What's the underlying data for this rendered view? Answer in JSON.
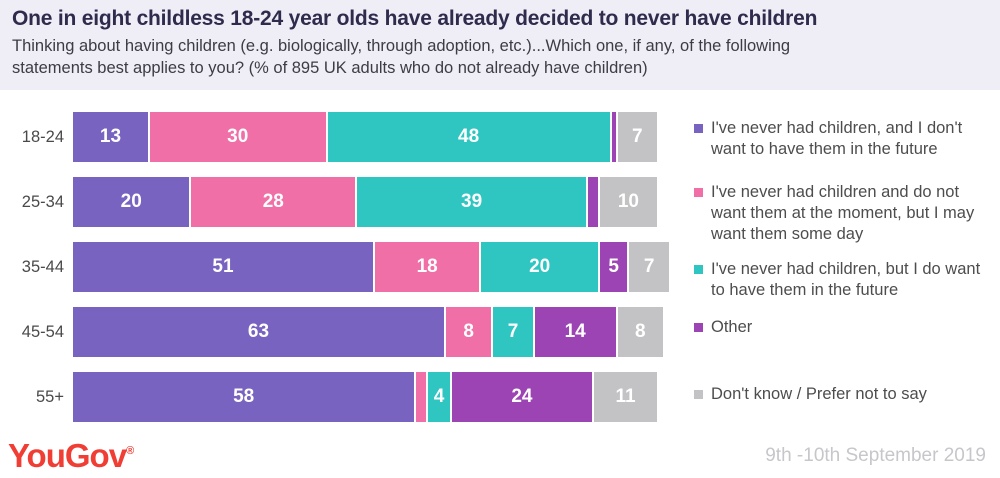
{
  "header": {
    "title": "One in eight childless 18-24 year olds have already decided to never have children",
    "subtitle_lines": [
      "Thinking about having children (e.g. biologically, through adoption, etc.)...Which one, if any, of the following",
      "statements best applies to you? (% of 895 UK adults who do not already have children)"
    ]
  },
  "chart_data": {
    "type": "bar",
    "variant": "horizontal-stacked",
    "unit": "%",
    "xlim": [
      0,
      100
    ],
    "grid": false,
    "legend_position": "right",
    "value_label_min": 4,
    "categories": [
      "18-24",
      "25-34",
      "35-44",
      "45-54",
      "55+"
    ],
    "series": [
      {
        "name": "I've never had children, and I don't want to have them in the future",
        "color": "#7963C1",
        "values": [
          13,
          20,
          51,
          63,
          58
        ]
      },
      {
        "name": "I've never had children and do not want them at the moment, but I may want them some day",
        "color": "#F06FA6",
        "values": [
          30,
          28,
          18,
          8,
          2
        ]
      },
      {
        "name": "I've never had children, but I do want to have them in the future",
        "color": "#2FC6C2",
        "values": [
          48,
          39,
          20,
          7,
          4
        ]
      },
      {
        "name": "Other",
        "color": "#9C44B3",
        "values": [
          1,
          2,
          5,
          14,
          24
        ]
      },
      {
        "name": "Don't know / Prefer not to say",
        "color": "#C3C2C4",
        "values": [
          7,
          10,
          7,
          8,
          11
        ]
      }
    ]
  },
  "footer": {
    "logo_text": "YouGov",
    "registered_mark": "®",
    "date_range": "9th -10th September 2019"
  },
  "colors": {
    "header_background": "#EFEDF5",
    "title_text": "#2E2B4C",
    "body_text": "#3C3C44",
    "axis_label_text": "#4A4A4A",
    "legend_text": "#4D4D4D",
    "date_text": "#C7C6CA",
    "logo_red": "#F03E35"
  }
}
